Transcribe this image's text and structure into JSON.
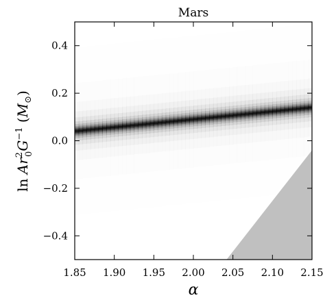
{
  "chart_data": {
    "type": "heatmap",
    "title": "Mars",
    "xlabel": "α",
    "ylabel": {
      "lead": "ln ",
      "A": "A",
      "r": "r",
      "r_sup": "2",
      "r_sub": "0",
      "G": "G",
      "G_sup": "−1",
      "unit_open": " (",
      "M": "M",
      "M_sub": "⊙",
      "unit_close": ")"
    },
    "xlim": [
      1.85,
      2.15
    ],
    "ylim": [
      -0.5,
      0.5
    ],
    "x_ticks": [
      1.85,
      1.9,
      1.95,
      2.0,
      2.05,
      2.1,
      2.15
    ],
    "x_tick_labels": [
      "1.85",
      "1.90",
      "1.95",
      "2.00",
      "2.05",
      "2.10",
      "2.15"
    ],
    "y_ticks": [
      -0.4,
      -0.2,
      0.0,
      0.2,
      0.4
    ],
    "y_tick_labels": [
      "−0.4",
      "−0.2",
      "0.0",
      "0.2",
      "0.4"
    ],
    "grid": false,
    "colormap": "white-to-black (grayscale likelihood)",
    "ridge": {
      "description": "maximum-likelihood ridge line",
      "points": [
        [
          1.85,
          0.04
        ],
        [
          2.15,
          0.14
        ]
      ]
    },
    "excluded_region": {
      "color": "#c0c0c0",
      "vertices": [
        [
          2.042,
          -0.5
        ],
        [
          2.15,
          -0.04
        ],
        [
          2.15,
          -0.5
        ]
      ]
    }
  }
}
